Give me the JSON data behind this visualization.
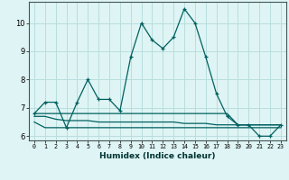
{
  "xlabel": "Humidex (Indice chaleur)",
  "x": [
    0,
    1,
    2,
    3,
    4,
    5,
    6,
    7,
    8,
    9,
    10,
    11,
    12,
    13,
    14,
    15,
    16,
    17,
    18,
    19,
    20,
    21,
    22,
    23
  ],
  "main_line": [
    6.8,
    7.2,
    7.2,
    6.3,
    7.2,
    8.0,
    7.3,
    7.3,
    6.9,
    8.8,
    10.0,
    9.4,
    9.1,
    9.5,
    10.5,
    10.0,
    8.8,
    7.5,
    6.7,
    6.4,
    6.4,
    6.0,
    6.0,
    6.4
  ],
  "line2": [
    6.8,
    6.8,
    6.8,
    6.8,
    6.8,
    6.8,
    6.8,
    6.8,
    6.8,
    6.8,
    6.8,
    6.8,
    6.8,
    6.8,
    6.8,
    6.8,
    6.8,
    6.8,
    6.8,
    6.4,
    6.4,
    6.4,
    6.4,
    6.4
  ],
  "line3": [
    6.7,
    6.7,
    6.6,
    6.55,
    6.55,
    6.55,
    6.5,
    6.5,
    6.5,
    6.5,
    6.5,
    6.5,
    6.5,
    6.5,
    6.45,
    6.45,
    6.45,
    6.4,
    6.4,
    6.4,
    6.4,
    6.4,
    6.4,
    6.4
  ],
  "line4": [
    6.5,
    6.3,
    6.3,
    6.3,
    6.3,
    6.3,
    6.3,
    6.3,
    6.3,
    6.3,
    6.3,
    6.3,
    6.3,
    6.3,
    6.3,
    6.3,
    6.3,
    6.3,
    6.3,
    6.3,
    6.3,
    6.3,
    6.3,
    6.3
  ],
  "line_color": "#006060",
  "bg_color": "#dff4f4",
  "grid_color": "#b8dede",
  "ylim": [
    5.85,
    10.75
  ],
  "yticks": [
    6,
    7,
    8,
    9,
    10
  ],
  "xlim": [
    -0.5,
    23.5
  ]
}
